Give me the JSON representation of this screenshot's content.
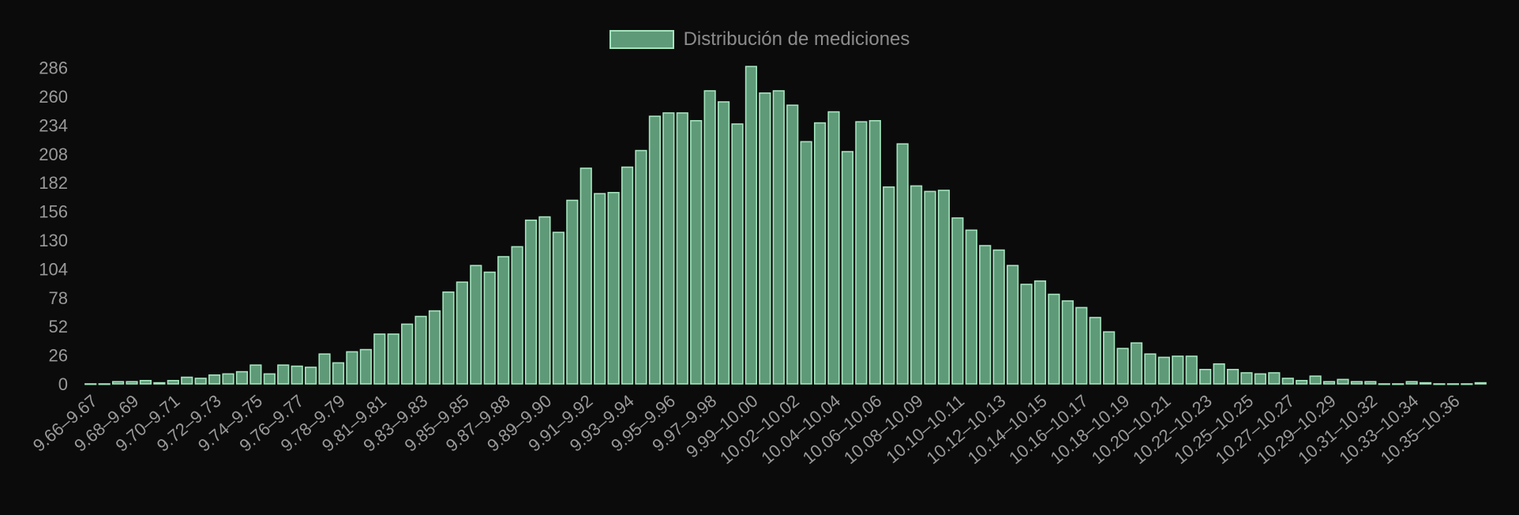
{
  "chart_data": {
    "type": "bar",
    "legend": {
      "label": "Distribución de mediciones",
      "position": "top-center"
    },
    "colors": {
      "bar_fill": "#5f9a78",
      "bar_border": "#a3e4bd",
      "background": "#0b0b0b",
      "text": "#9a9a9a"
    },
    "y_ticks": [
      0,
      26,
      52,
      78,
      104,
      130,
      156,
      182,
      208,
      234,
      260,
      286
    ],
    "ylim": [
      0,
      286
    ],
    "x_tick_labels": [
      "9.66–9.67",
      "9.68–9.69",
      "9.70–9.71",
      "9.72–9.73",
      "9.74–9.75",
      "9.76–9.77",
      "9.78–9.79",
      "9.81–9.81",
      "9.83–9.83",
      "9.85–9.85",
      "9.87–9.88",
      "9.89–9.90",
      "9.91–9.92",
      "9.93–9.94",
      "9.95–9.96",
      "9.97–9.98",
      "9.99–10.00",
      "10.02–10.02",
      "10.04–10.04",
      "10.06–10.06",
      "10.08–10.09",
      "10.10–10.11",
      "10.12–10.13",
      "10.14–10.15",
      "10.16–10.17",
      "10.18–10.19",
      "10.20–10.21",
      "10.22–10.23",
      "10.25–10.25",
      "10.27–10.27",
      "10.29–10.29",
      "10.31–10.32",
      "10.33–10.34",
      "10.35–10.36"
    ],
    "values": [
      0,
      0,
      2,
      2,
      3,
      1,
      3,
      6,
      5,
      8,
      9,
      11,
      17,
      9,
      17,
      16,
      15,
      27,
      19,
      29,
      31,
      45,
      45,
      54,
      61,
      66,
      83,
      92,
      107,
      101,
      115,
      124,
      148,
      151,
      137,
      166,
      195,
      172,
      173,
      196,
      211,
      242,
      245,
      245,
      238,
      265,
      255,
      235,
      287,
      263,
      265,
      252,
      219,
      236,
      246,
      210,
      237,
      238,
      178,
      217,
      179,
      174,
      175,
      150,
      139,
      125,
      121,
      107,
      90,
      93,
      81,
      75,
      69,
      60,
      47,
      32,
      37,
      27,
      24,
      25,
      25,
      13,
      18,
      13,
      10,
      9,
      10,
      5,
      3,
      7,
      2,
      4,
      2,
      2,
      0,
      0,
      2,
      1,
      0,
      0,
      0,
      1
    ]
  }
}
